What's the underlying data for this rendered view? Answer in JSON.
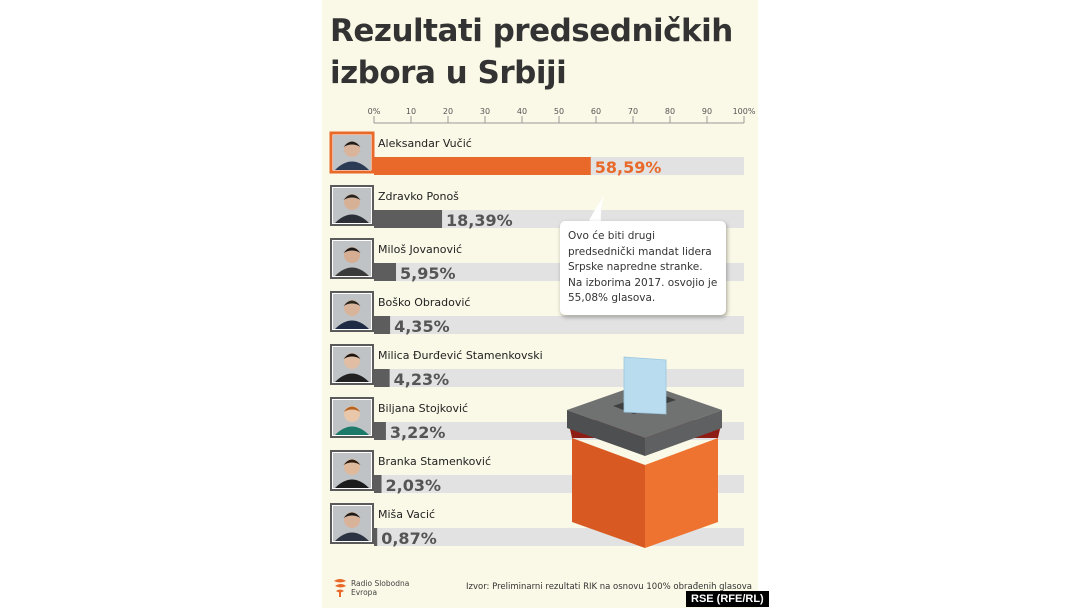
{
  "title": "Rezultati predsedničkih izbora u Srbiji",
  "callout": "Ovo će biti drugi predsednički mandat lidera Srpske napredne stranke. Na izborima 2017. osvojio je 55,08% glasova.",
  "source": "Izvor: Preliminarni rezultati RIK na osnovu 100% obrađenih glasova",
  "logo_text": "Radio Slobodna Evropa",
  "credit": "RSE (RFE/RL)",
  "colors": {
    "highlight": "#e8692a",
    "bar": "#5d5d5d",
    "track": "#e2e2e2",
    "background": "#faf8e6"
  },
  "chart_data": {
    "type": "bar",
    "orientation": "horizontal",
    "title": "Rezultati predsedničkih izbora u Srbiji",
    "categories": [
      "Aleksandar Vučić",
      "Zdravko Ponoš",
      "Miloš Jovanović",
      "Boško Obradović",
      "Milica Đurđević Stamenkovski",
      "Biljana Stojković",
      "Branka Stamenković",
      "Miša Vacić"
    ],
    "values": [
      58.59,
      18.39,
      5.95,
      4.35,
      4.23,
      3.22,
      2.03,
      0.87
    ],
    "value_labels": [
      "58,59%",
      "18,39%",
      "5,95%",
      "4,35%",
      "4,23%",
      "3,22%",
      "2,03%",
      "0,87%"
    ],
    "xlim": [
      0,
      100
    ],
    "ticks": [
      "0%",
      "10",
      "20",
      "30",
      "40",
      "50",
      "60",
      "70",
      "80",
      "90",
      "100%"
    ],
    "grid": true
  }
}
